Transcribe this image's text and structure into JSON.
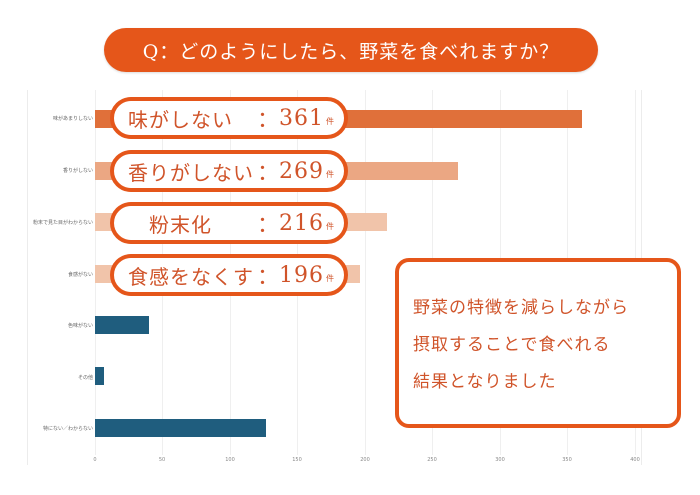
{
  "title": "Q：どのようにしたら、野菜を食べれますか？",
  "chart_data": {
    "type": "bar",
    "orientation": "horizontal",
    "title": "Q：どのようにしたら、野菜を食べれますか？",
    "xlabel": "",
    "ylabel": "",
    "xlim": [
      0,
      400
    ],
    "x_ticks": [
      "0",
      "50",
      "100",
      "150",
      "200",
      "250",
      "300",
      "350",
      "400"
    ],
    "grid": true,
    "categories": [
      "味があまりしない",
      "香りがしない",
      "粉末で見た目がわからない",
      "食感がない",
      "色味がない",
      "その他",
      "特にない／わからない"
    ],
    "values": [
      361,
      269,
      216,
      196,
      40,
      7,
      127
    ],
    "colors": [
      "#e0703a",
      "#eba783",
      "#f1c4aa",
      "#f1c4aa",
      "#1f5d7e",
      "#1f5d7e",
      "#1f5d7e"
    ]
  },
  "callouts": [
    {
      "name": "味がしない",
      "colon": "：",
      "count": "361",
      "unit": "件"
    },
    {
      "name": "香りがしない",
      "colon": "：",
      "count": "269",
      "unit": "件"
    },
    {
      "name": "　粉末化",
      "colon": "：",
      "count": "216",
      "unit": "件"
    },
    {
      "name": "食感をなくす",
      "colon": "：",
      "count": "196",
      "unit": "件"
    }
  ],
  "conclusion": {
    "lines": [
      "野菜の特徴を減らしながら",
      "摂取することで食べれる",
      "結果となりました"
    ]
  },
  "colors": {
    "accent": "#e5561a",
    "text_orange": "#d0542a",
    "blue": "#1f5d7e"
  }
}
